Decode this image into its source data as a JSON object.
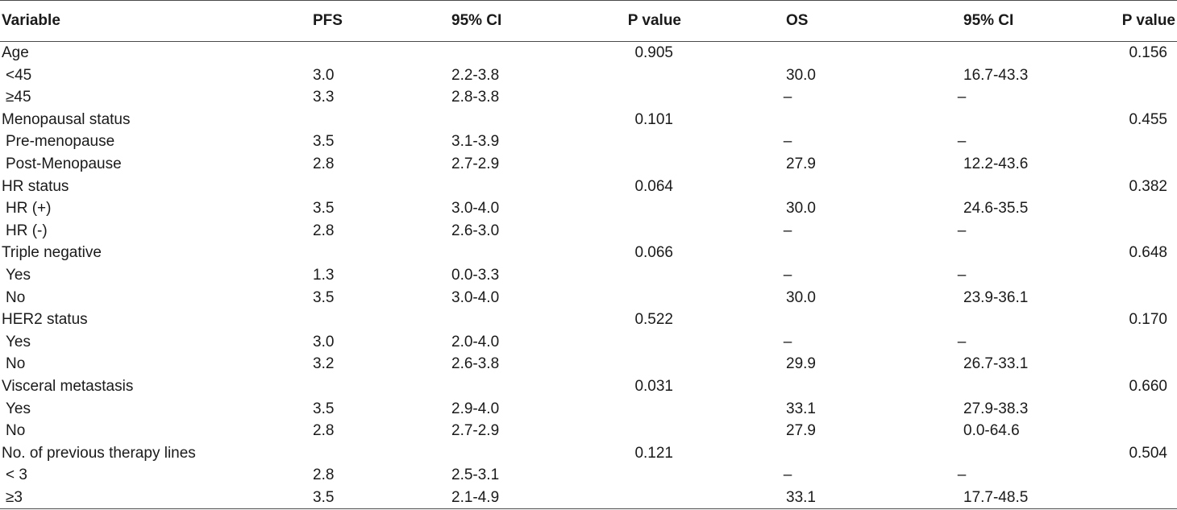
{
  "table": {
    "headers": [
      "Variable",
      "PFS",
      "95% CI",
      "P value",
      "OS",
      "95% CI",
      "P value"
    ],
    "rows": [
      {
        "label": "Age",
        "sub": false,
        "pfs": "",
        "pfs_ci": "",
        "pfs_p": "0.905",
        "os": "",
        "os_ci": "",
        "os_p": "0.156"
      },
      {
        "label": "<45",
        "sub": true,
        "pfs": "3.0",
        "pfs_ci": "2.2-3.8",
        "pfs_p": "",
        "os": "30.0",
        "os_ci": "16.7-43.3",
        "os_p": ""
      },
      {
        "label": "≥45",
        "sub": true,
        "pfs": "3.3",
        "pfs_ci": "2.8-3.8",
        "pfs_p": "",
        "os": "–",
        "os_ci": "–",
        "os_p": ""
      },
      {
        "label": "Menopausal status",
        "sub": false,
        "pfs": "",
        "pfs_ci": "",
        "pfs_p": "0.101",
        "os": "",
        "os_ci": "",
        "os_p": "0.455"
      },
      {
        "label": "Pre-menopause",
        "sub": true,
        "pfs": "3.5",
        "pfs_ci": "3.1-3.9",
        "pfs_p": "",
        "os": "–",
        "os_ci": "–",
        "os_p": ""
      },
      {
        "label": "Post-Menopause",
        "sub": true,
        "pfs": "2.8",
        "pfs_ci": "2.7-2.9",
        "pfs_p": "",
        "os": "27.9",
        "os_ci": "12.2-43.6",
        "os_p": ""
      },
      {
        "label": "HR status",
        "sub": false,
        "pfs": "",
        "pfs_ci": "",
        "pfs_p": "0.064",
        "os": "",
        "os_ci": "",
        "os_p": "0.382"
      },
      {
        "label": "HR (+)",
        "sub": true,
        "pfs": "3.5",
        "pfs_ci": "3.0-4.0",
        "pfs_p": "",
        "os": "30.0",
        "os_ci": "24.6-35.5",
        "os_p": ""
      },
      {
        "label": "HR (-)",
        "sub": true,
        "pfs": "2.8",
        "pfs_ci": "2.6-3.0",
        "pfs_p": "",
        "os": "–",
        "os_ci": "–",
        "os_p": ""
      },
      {
        "label": "Triple negative",
        "sub": false,
        "pfs": "",
        "pfs_ci": "",
        "pfs_p": "0.066",
        "os": "",
        "os_ci": "",
        "os_p": "0.648"
      },
      {
        "label": "Yes",
        "sub": true,
        "pfs": "1.3",
        "pfs_ci": "0.0-3.3",
        "pfs_p": "",
        "os": "–",
        "os_ci": "–",
        "os_p": ""
      },
      {
        "label": "No",
        "sub": true,
        "pfs": "3.5",
        "pfs_ci": "3.0-4.0",
        "pfs_p": "",
        "os": "30.0",
        "os_ci": "23.9-36.1",
        "os_p": ""
      },
      {
        "label": "HER2 status",
        "sub": false,
        "pfs": "",
        "pfs_ci": "",
        "pfs_p": "0.522",
        "os": "",
        "os_ci": "",
        "os_p": "0.170"
      },
      {
        "label": "Yes",
        "sub": true,
        "pfs": "3.0",
        "pfs_ci": "2.0-4.0",
        "pfs_p": "",
        "os": "–",
        "os_ci": "–",
        "os_p": ""
      },
      {
        "label": "No",
        "sub": true,
        "pfs": "3.2",
        "pfs_ci": "2.6-3.8",
        "pfs_p": "",
        "os": "29.9",
        "os_ci": "26.7-33.1",
        "os_p": ""
      },
      {
        "label": "Visceral metastasis",
        "sub": false,
        "pfs": "",
        "pfs_ci": "",
        "pfs_p": "0.031",
        "os": "",
        "os_ci": "",
        "os_p": "0.660"
      },
      {
        "label": "Yes",
        "sub": true,
        "pfs": "3.5",
        "pfs_ci": "2.9-4.0",
        "pfs_p": "",
        "os": "33.1",
        "os_ci": "27.9-38.3",
        "os_p": ""
      },
      {
        "label": "No",
        "sub": true,
        "pfs": "2.8",
        "pfs_ci": "2.7-2.9",
        "pfs_p": "",
        "os": "27.9",
        "os_ci": "0.0-64.6",
        "os_p": ""
      },
      {
        "label": "No. of previous therapy lines",
        "sub": false,
        "pfs": "",
        "pfs_ci": "",
        "pfs_p": "0.121",
        "os": "",
        "os_ci": "",
        "os_p": "0.504"
      },
      {
        "label": "< 3",
        "sub": true,
        "pfs": "2.8",
        "pfs_ci": "2.5-3.1",
        "pfs_p": "",
        "os": "–",
        "os_ci": "–",
        "os_p": ""
      },
      {
        "label": "≥3",
        "sub": true,
        "pfs": "3.5",
        "pfs_ci": "2.1-4.9",
        "pfs_p": "",
        "os": "33.1",
        "os_ci": "17.7-48.5",
        "os_p": ""
      }
    ]
  }
}
